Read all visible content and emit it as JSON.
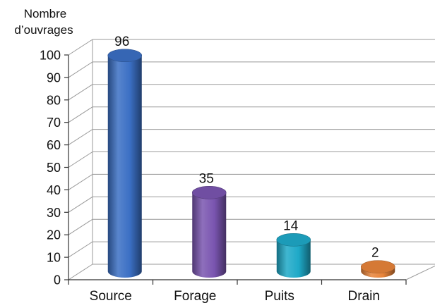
{
  "chart_data": {
    "type": "bar",
    "style": "3d-cylinder",
    "title": "",
    "ylabel_lines": [
      "Nombre",
      "d’ouvrages"
    ],
    "xlabel": "",
    "categories": [
      "Source",
      "Forage",
      "Puits",
      "Drain"
    ],
    "values": [
      96,
      35,
      14,
      2
    ],
    "data_labels": [
      "96",
      "35",
      "14",
      "2"
    ],
    "ylim": [
      0,
      100
    ],
    "yticks": [
      "0",
      "10",
      "20",
      "30",
      "40",
      "50",
      "60",
      "70",
      "80",
      "90",
      "100"
    ],
    "colors": [
      "#3b6fc4",
      "#7a55b0",
      "#1ea9c8",
      "#e8843a"
    ],
    "grid": true,
    "legend": "none"
  }
}
